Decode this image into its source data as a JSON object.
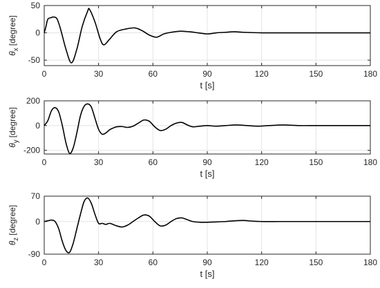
{
  "chart_data": [
    {
      "type": "line",
      "xlabel": "t [s]",
      "ylabel_symbol": "θ",
      "ylabel_sub": "x",
      "ylabel_unit": "[degree]",
      "xlim": [
        0,
        180
      ],
      "ylim": [
        -60,
        50
      ],
      "xticks": [
        "0",
        "30",
        "60",
        "90",
        "120",
        "150",
        "180"
      ],
      "yticks": [
        {
          "v": 50,
          "label": "50"
        },
        {
          "v": 0,
          "label": "0"
        },
        {
          "v": -50,
          "label": "-50"
        }
      ],
      "grid": true,
      "x": [
        0,
        1,
        2,
        4,
        5,
        7,
        9,
        12,
        15,
        18,
        21,
        24,
        25,
        28,
        31,
        33,
        36,
        40,
        45,
        50,
        54,
        58,
        62,
        66,
        70,
        75,
        80,
        85,
        90,
        95,
        100,
        105,
        110,
        120,
        130,
        140,
        150,
        160,
        170,
        180
      ],
      "values": [
        0,
        12,
        25,
        28,
        29,
        26,
        7,
        -30,
        -55,
        -30,
        12,
        40,
        43,
        20,
        -12,
        -22,
        -12,
        2,
        7,
        9,
        4,
        -4,
        -8,
        -2,
        1,
        3,
        2,
        0,
        -2,
        0,
        1,
        2,
        1,
        0,
        0,
        0,
        0,
        0,
        0,
        0
      ]
    },
    {
      "type": "line",
      "xlabel": "t [s]",
      "ylabel_symbol": "θ",
      "ylabel_sub": "y",
      "ylabel_unit": "[degree]",
      "xlim": [
        0,
        180
      ],
      "ylim": [
        -230,
        200
      ],
      "xticks": [
        "0",
        "30",
        "60",
        "90",
        "120",
        "150",
        "180"
      ],
      "yticks": [
        {
          "v": 200,
          "label": "200"
        },
        {
          "v": 0,
          "label": "0"
        },
        {
          "v": -200,
          "label": "-200"
        }
      ],
      "grid": true,
      "x": [
        0,
        2,
        4,
        6,
        8,
        10,
        12,
        14,
        16,
        18,
        20,
        22,
        24,
        26,
        28,
        30,
        32,
        34,
        36,
        38,
        40,
        43,
        46,
        49,
        52,
        55,
        58,
        61,
        64,
        67,
        70,
        73,
        76,
        79,
        82,
        86,
        90,
        95,
        100,
        106,
        112,
        118,
        124,
        132,
        140,
        150,
        160,
        170,
        180
      ],
      "values": [
        0,
        40,
        120,
        145,
        110,
        0,
        -140,
        -225,
        -180,
        -60,
        80,
        155,
        175,
        150,
        60,
        -30,
        -70,
        -60,
        -35,
        -20,
        -10,
        -8,
        -15,
        -5,
        20,
        45,
        35,
        -10,
        -40,
        -30,
        0,
        20,
        25,
        5,
        -10,
        -5,
        0,
        -5,
        0,
        5,
        0,
        -5,
        0,
        5,
        0,
        0,
        0,
        0,
        0
      ]
    },
    {
      "type": "line",
      "xlabel": "t [s]",
      "ylabel_symbol": "θ",
      "ylabel_sub": "z",
      "ylabel_unit": "[degree]",
      "xlim": [
        0,
        180
      ],
      "ylim": [
        -90,
        70
      ],
      "xticks": [
        "0",
        "30",
        "60",
        "90",
        "120",
        "150",
        "180"
      ],
      "yticks": [
        {
          "v": 70,
          "label": "70"
        },
        {
          "v": 0,
          "label": "0"
        },
        {
          "v": -90,
          "label": "-90"
        }
      ],
      "grid": true,
      "x": [
        0,
        2,
        4,
        6,
        8,
        10,
        12,
        14,
        16,
        18,
        20,
        22,
        24,
        26,
        28,
        30,
        32,
        34,
        36,
        38,
        40,
        43,
        46,
        49,
        52,
        55,
        58,
        61,
        64,
        67,
        70,
        73,
        76,
        79,
        82,
        86,
        90,
        95,
        100,
        105,
        110,
        115,
        120,
        130,
        140,
        150,
        160,
        170,
        180
      ],
      "values": [
        0,
        2,
        4,
        0,
        -20,
        -55,
        -80,
        -85,
        -60,
        -20,
        20,
        55,
        65,
        50,
        20,
        -5,
        -5,
        -8,
        -5,
        -8,
        -12,
        -15,
        -10,
        0,
        10,
        18,
        15,
        0,
        -12,
        -10,
        0,
        8,
        10,
        5,
        0,
        -2,
        -2,
        -1,
        0,
        2,
        3,
        1,
        0,
        0,
        0,
        0,
        0,
        0,
        0
      ]
    }
  ]
}
